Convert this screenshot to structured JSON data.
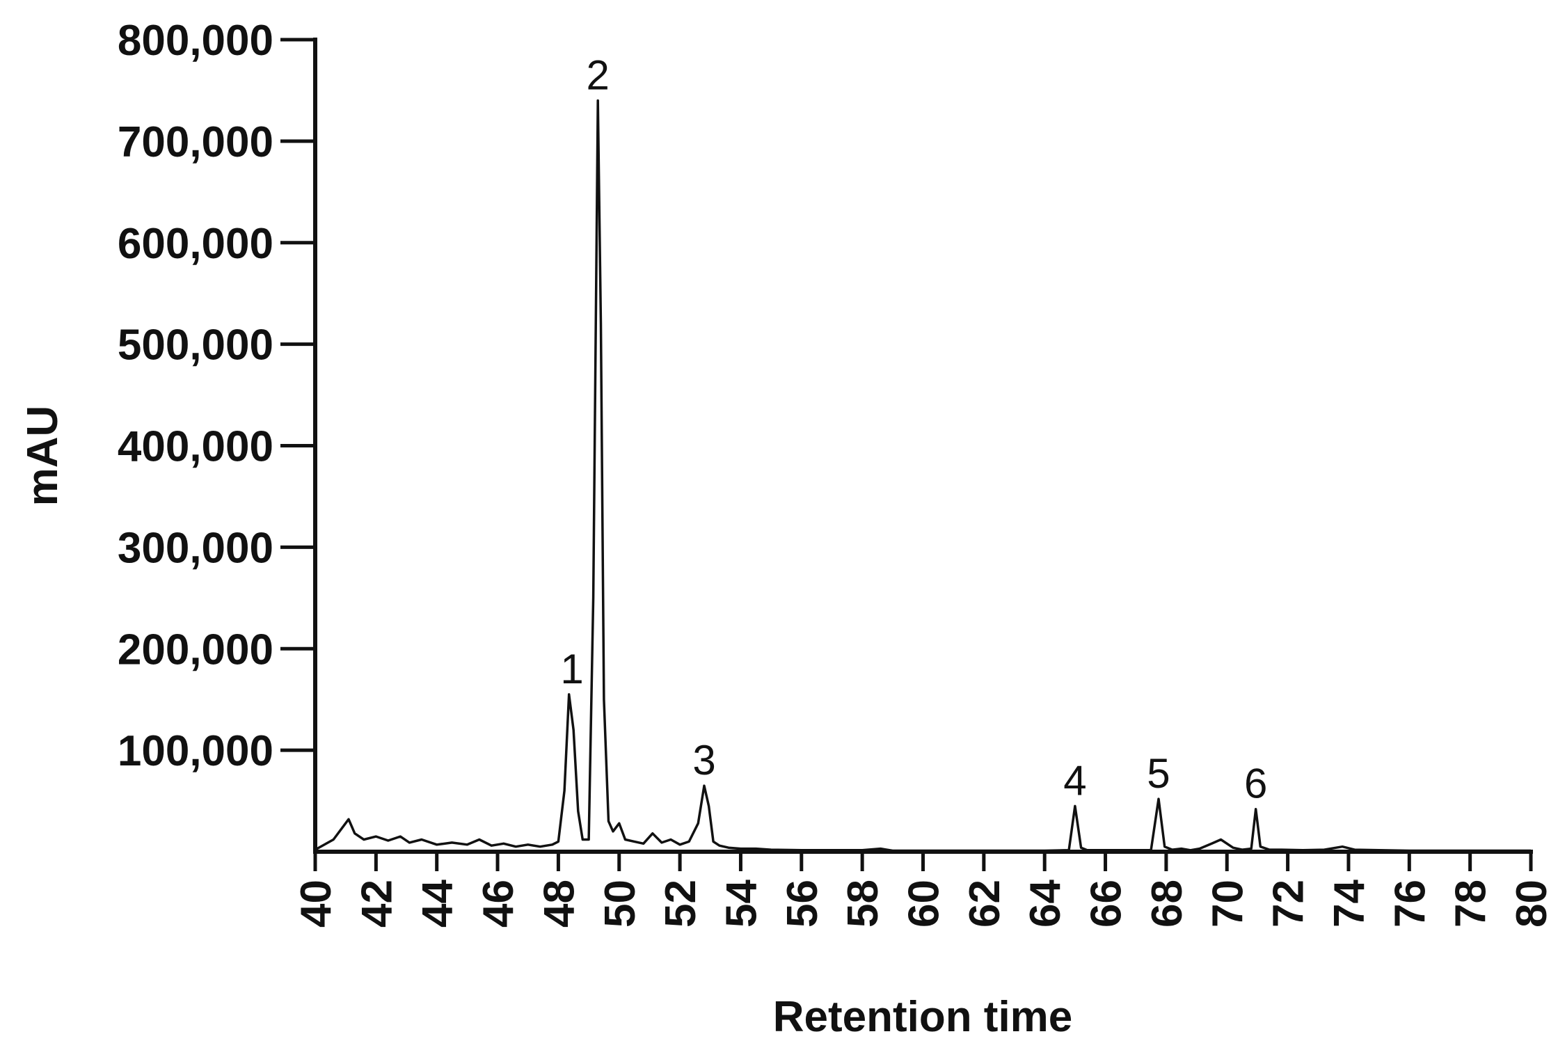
{
  "chart_data": {
    "type": "line",
    "title": "",
    "xlabel": "Retention time",
    "ylabel": "mAU",
    "xlim": [
      40,
      80
    ],
    "ylim": [
      0,
      800000
    ],
    "grid": false,
    "x_ticks": [
      40,
      42,
      44,
      46,
      48,
      50,
      52,
      54,
      56,
      58,
      60,
      62,
      64,
      66,
      68,
      70,
      72,
      74,
      76,
      78,
      80
    ],
    "y_ticks": [
      {
        "value": 100000,
        "label": "100,000"
      },
      {
        "value": 200000,
        "label": "200,000"
      },
      {
        "value": 300000,
        "label": "300,000"
      },
      {
        "value": 400000,
        "label": "400,000"
      },
      {
        "value": 500000,
        "label": "500,000"
      },
      {
        "value": 600000,
        "label": "600,000"
      },
      {
        "value": 700000,
        "label": "700,000"
      },
      {
        "value": 800000,
        "label": "800,000"
      }
    ],
    "line_color": "#111111",
    "series": [
      {
        "x": [
          40.0,
          40.6,
          41.1,
          41.3,
          41.6,
          42.0,
          42.4,
          42.8,
          43.1,
          43.5,
          44.0,
          44.5,
          45.0,
          45.4,
          45.8,
          46.2,
          46.6,
          47.0,
          47.4,
          47.8,
          48.0,
          48.2,
          48.35,
          48.5,
          48.65,
          48.8,
          49.0,
          49.15,
          49.3,
          49.4,
          49.5,
          49.65,
          49.8,
          50.0,
          50.2,
          50.5,
          50.8,
          51.1,
          51.4,
          51.7,
          52.0,
          52.3,
          52.6,
          52.8,
          52.95,
          53.1,
          53.3,
          53.6,
          54.0,
          54.5,
          55.0,
          56.0,
          57.0,
          58.0,
          58.6,
          59.0,
          60.0,
          61.0,
          62.0,
          63.0,
          64.0,
          64.8,
          65.0,
          65.2,
          65.4,
          66.0,
          67.0,
          67.5,
          67.75,
          67.95,
          68.2,
          68.5,
          68.8,
          69.1,
          69.5,
          69.8,
          70.2,
          70.5,
          70.8,
          70.95,
          71.1,
          71.4,
          71.8,
          72.5,
          73.2,
          73.8,
          74.2,
          75.0,
          76.0,
          77.0,
          78.0,
          79.0,
          80.0
        ],
        "values": [
          2000,
          12000,
          32000,
          18000,
          12000,
          15000,
          11000,
          15000,
          9000,
          12000,
          7000,
          9000,
          7000,
          12000,
          6000,
          8000,
          5000,
          7000,
          5000,
          7000,
          10000,
          60000,
          155000,
          120000,
          40000,
          12000,
          12000,
          250000,
          740000,
          520000,
          150000,
          30000,
          20000,
          28000,
          12000,
          10000,
          8000,
          18000,
          9000,
          12000,
          7000,
          10000,
          28000,
          65000,
          45000,
          10000,
          6000,
          4000,
          3000,
          3000,
          2000,
          1500,
          1500,
          1500,
          3000,
          1000,
          1000,
          1000,
          1000,
          1000,
          1000,
          1500,
          45000,
          4000,
          1500,
          1500,
          1500,
          1500,
          52000,
          5000,
          2000,
          3000,
          1500,
          3000,
          8000,
          12000,
          4000,
          2000,
          3000,
          42000,
          5000,
          2000,
          2000,
          1500,
          2000,
          5000,
          2000,
          1500,
          1000,
          1000,
          1000,
          1000,
          1000
        ]
      }
    ],
    "annotations": [
      {
        "label": "1",
        "x": 48.45,
        "y": 155000
      },
      {
        "label": "2",
        "x": 49.3,
        "y": 740000
      },
      {
        "label": "3",
        "x": 52.8,
        "y": 65000
      },
      {
        "label": "4",
        "x": 65.0,
        "y": 45000
      },
      {
        "label": "5",
        "x": 67.75,
        "y": 52000
      },
      {
        "label": "6",
        "x": 70.95,
        "y": 42000
      }
    ]
  }
}
